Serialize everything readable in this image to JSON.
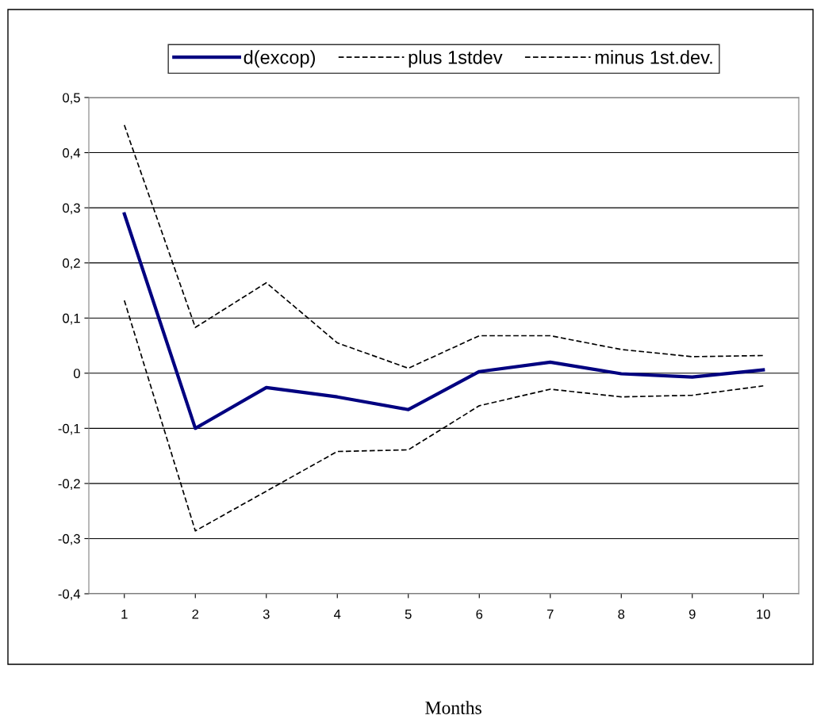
{
  "chart_data": {
    "type": "line",
    "xlabel": "Months",
    "categories": [
      "1",
      "2",
      "3",
      "4",
      "5",
      "6",
      "7",
      "8",
      "9",
      "10"
    ],
    "series": [
      {
        "name": "d(excop)",
        "color": "#000080",
        "line_style": "solid",
        "values": [
          0.289,
          -0.1,
          -0.026,
          -0.043,
          -0.066,
          0.003,
          0.02,
          -0.001,
          -0.007,
          0.006
        ]
      },
      {
        "name": "plus 1stdev",
        "color": "#000000",
        "line_style": "dashed",
        "values": [
          0.45,
          0.083,
          0.164,
          0.055,
          0.009,
          0.068,
          0.068,
          0.043,
          0.03,
          0.032
        ]
      },
      {
        "name": "minus 1st.dev.",
        "color": "#000000",
        "line_style": "dashed",
        "values": [
          0.132,
          -0.286,
          -0.214,
          -0.142,
          -0.139,
          -0.059,
          -0.029,
          -0.043,
          -0.04,
          -0.023
        ]
      }
    ],
    "ylim": [
      -0.4,
      0.5
    ],
    "yticks": [
      {
        "value": -0.4,
        "label": "-0,4"
      },
      {
        "value": -0.3,
        "label": "-0,3"
      },
      {
        "value": -0.2,
        "label": "-0,2"
      },
      {
        "value": -0.1,
        "label": "-0,1"
      },
      0,
      {
        "value": 0.1,
        "label": "0,1"
      },
      {
        "value": 0.2,
        "label": "0,2"
      },
      {
        "value": 0.3,
        "label": "0,3"
      },
      {
        "value": 0.4,
        "label": "0,4"
      },
      {
        "value": 0.5,
        "label": "0,5"
      }
    ],
    "grid": "y",
    "legend": "top",
    "marker": "none"
  }
}
